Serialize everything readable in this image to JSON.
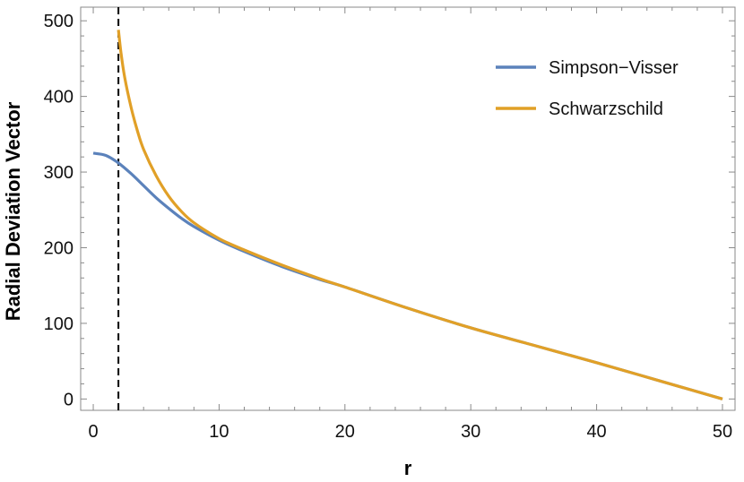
{
  "chart_data": {
    "type": "line",
    "xlabel": "r",
    "ylabel": "Radial Deviation Vector",
    "xlim": [
      -1,
      51
    ],
    "ylim": [
      -15,
      518
    ],
    "x_ticks": [
      0,
      10,
      20,
      30,
      40,
      50
    ],
    "y_ticks": [
      0,
      100,
      200,
      300,
      400,
      500
    ],
    "grid": false,
    "legend_position": "top-right",
    "vertical_marker": {
      "x": 2,
      "style": "dashed",
      "color": "#000000"
    },
    "series": [
      {
        "name": "Simpson−Visser",
        "color": "#5b82bb",
        "x": [
          0,
          1,
          2,
          3,
          4,
          5,
          6,
          7,
          8,
          10,
          12,
          15,
          18,
          20,
          25,
          30,
          35,
          40,
          45,
          50
        ],
        "y": [
          325,
          322,
          312,
          298,
          282,
          266,
          252,
          239,
          228,
          210,
          195,
          175,
          158,
          148,
          120,
          94,
          71,
          48,
          24,
          0
        ]
      },
      {
        "name": "Schwarzschild",
        "color": "#e1a027",
        "x": [
          2,
          2.2,
          2.5,
          3,
          3.5,
          4,
          5,
          6,
          7,
          8,
          10,
          12,
          15,
          18,
          20,
          25,
          30,
          35,
          40,
          45,
          50
        ],
        "y": [
          488,
          458,
          425,
          386,
          355,
          330,
          295,
          268,
          248,
          233,
          212,
          197,
          177,
          159,
          148,
          120,
          94,
          71,
          48,
          24,
          0
        ]
      }
    ]
  }
}
